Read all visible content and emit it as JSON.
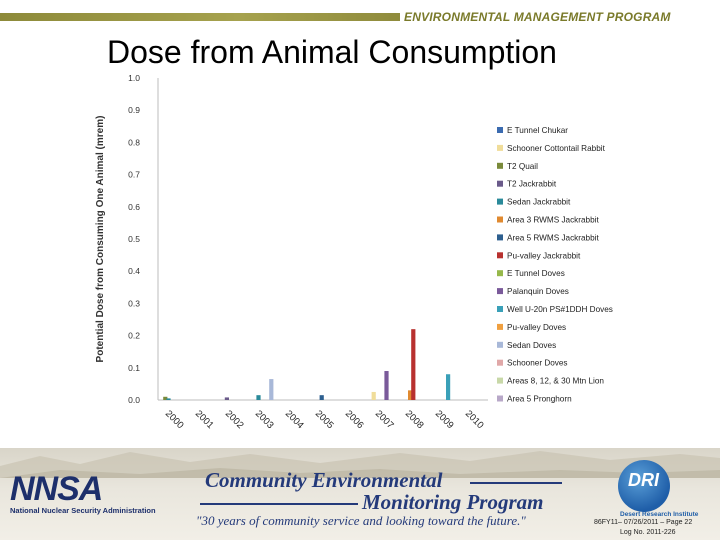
{
  "header": {
    "program": "ENVIRONMENTAL MANAGEMENT PROGRAM"
  },
  "slide": {
    "title": "Dose from Animal Consumption"
  },
  "chart_data": {
    "type": "bar",
    "title": "",
    "xlabel": "",
    "ylabel": "Potential Dose from Consuming One Animal (mrem)",
    "ylim": [
      0,
      1.0
    ],
    "yticks": [
      "0.0",
      "0.1",
      "0.2",
      "0.3",
      "0.4",
      "0.5",
      "0.6",
      "0.7",
      "0.8",
      "0.9",
      "1.0"
    ],
    "categories": [
      "2000",
      "2001",
      "2002",
      "2003",
      "2004",
      "2005",
      "2006",
      "2007",
      "2008",
      "2009",
      "2010"
    ],
    "legend_position": "right",
    "series": [
      {
        "name": "E Tunnel Chukar",
        "color": "#3b6bb0",
        "values": [
          null,
          null,
          null,
          null,
          null,
          null,
          null,
          null,
          null,
          null,
          null
        ]
      },
      {
        "name": "Schooner Cottontail Rabbit",
        "color": "#f0dd9a",
        "values": [
          null,
          null,
          null,
          null,
          null,
          null,
          null,
          0.025,
          null,
          null,
          null
        ]
      },
      {
        "name": "T2 Quail",
        "color": "#7a8a3a",
        "values": [
          0.01,
          null,
          null,
          null,
          null,
          null,
          null,
          null,
          null,
          null,
          null
        ]
      },
      {
        "name": "T2 Jackrabbit",
        "color": "#6a5a8a",
        "values": [
          null,
          null,
          0.008,
          null,
          null,
          null,
          null,
          null,
          null,
          null,
          null
        ]
      },
      {
        "name": "Sedan Jackrabbit",
        "color": "#2a8a9a",
        "values": [
          0.005,
          null,
          null,
          0.015,
          null,
          null,
          null,
          null,
          null,
          null,
          null
        ]
      },
      {
        "name": "Area 3 RWMS Jackrabbit",
        "color": "#e08a30",
        "values": [
          null,
          null,
          null,
          null,
          null,
          null,
          null,
          null,
          0.03,
          null,
          null
        ]
      },
      {
        "name": "Area 5 RWMS Jackrabbit",
        "color": "#2d5f8f",
        "values": [
          null,
          null,
          null,
          null,
          null,
          0.015,
          null,
          null,
          null,
          null,
          null
        ]
      },
      {
        "name": "Pu-valley Jackrabbit",
        "color": "#b8312f",
        "values": [
          null,
          null,
          null,
          null,
          null,
          null,
          null,
          null,
          0.22,
          null,
          null
        ]
      },
      {
        "name": "E Tunnel Doves",
        "color": "#96b84a",
        "values": [
          null,
          null,
          null,
          null,
          null,
          null,
          null,
          null,
          null,
          null,
          null
        ]
      },
      {
        "name": "Palanquin Doves",
        "color": "#7a5a9a",
        "values": [
          null,
          null,
          null,
          null,
          null,
          null,
          null,
          0.09,
          null,
          null,
          null
        ]
      },
      {
        "name": "Well U-20n PS#1DDH Doves",
        "color": "#3aa0b8",
        "values": [
          null,
          null,
          null,
          null,
          null,
          null,
          null,
          null,
          null,
          0.08,
          null
        ]
      },
      {
        "name": "Pu-valley Doves",
        "color": "#f0a040",
        "values": [
          null,
          null,
          null,
          null,
          null,
          null,
          null,
          null,
          null,
          null,
          null
        ]
      },
      {
        "name": "Sedan Doves",
        "color": "#a8b8d8",
        "values": [
          null,
          null,
          null,
          0.065,
          null,
          null,
          null,
          null,
          null,
          null,
          null
        ]
      },
      {
        "name": "Schooner Doves",
        "color": "#e0a8a8",
        "values": [
          null,
          null,
          null,
          null,
          null,
          null,
          null,
          null,
          null,
          null,
          null
        ]
      },
      {
        "name": "Areas 8, 12, & 30 Mtn Lion",
        "color": "#c8d8a8",
        "values": [
          null,
          null,
          null,
          null,
          null,
          null,
          null,
          null,
          null,
          null,
          null
        ]
      },
      {
        "name": "Area 5 Pronghorn",
        "color": "#b8a8c8",
        "values": [
          null,
          null,
          null,
          null,
          null,
          null,
          null,
          null,
          null,
          null,
          null
        ]
      }
    ]
  },
  "footer": {
    "nnsa_logo": "NNSA",
    "nnsa_name": "National Nuclear Security Administration",
    "cemp_line1": "Community Environmental",
    "cemp_line2": "Monitoring Program",
    "tagline": "\"30 years of community service and looking toward the future.\"",
    "dri_logo": "DRI",
    "dri_name": "Desert Research Institute",
    "page_info": "86FY11– 07/26/2011 – Page 22",
    "log_no": "Log No. 2011-226"
  }
}
